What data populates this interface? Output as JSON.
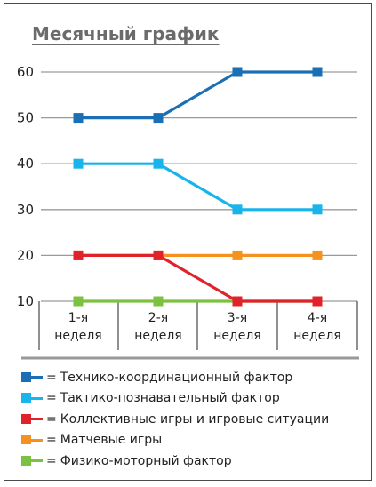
{
  "chart_data": {
    "type": "line",
    "title": "Месячный график",
    "categories": [
      "1-я неделя",
      "2-я неделя",
      "3-я неделя",
      "4-я неделя"
    ],
    "category_lines": [
      [
        "1-я",
        "неделя"
      ],
      [
        "2-я",
        "неделя"
      ],
      [
        "3-я",
        "неделя"
      ],
      [
        "4-я",
        "неделя"
      ]
    ],
    "yticks": [
      10,
      20,
      30,
      40,
      50,
      60
    ],
    "ylim": [
      10,
      60
    ],
    "grid": true,
    "legend_position": "bottom",
    "series": [
      {
        "name": "Технико-координационный фактор",
        "values": [
          50,
          50,
          60,
          60
        ],
        "color": "#1a6fb5"
      },
      {
        "name": "Тактико-познавательный фактор",
        "values": [
          40,
          40,
          30,
          30
        ],
        "color": "#19b4ea"
      },
      {
        "name": "Коллективные игры и игровые ситуации",
        "values": [
          20,
          20,
          10,
          10
        ],
        "color": "#e0232a"
      },
      {
        "name": "Матчевые игры",
        "values": [
          20,
          20,
          20,
          20
        ],
        "color": "#f5921f"
      },
      {
        "name": "Физико-моторный фактор",
        "values": [
          10,
          10,
          10,
          10
        ],
        "color": "#7cc242"
      }
    ],
    "legend_equals": "="
  }
}
